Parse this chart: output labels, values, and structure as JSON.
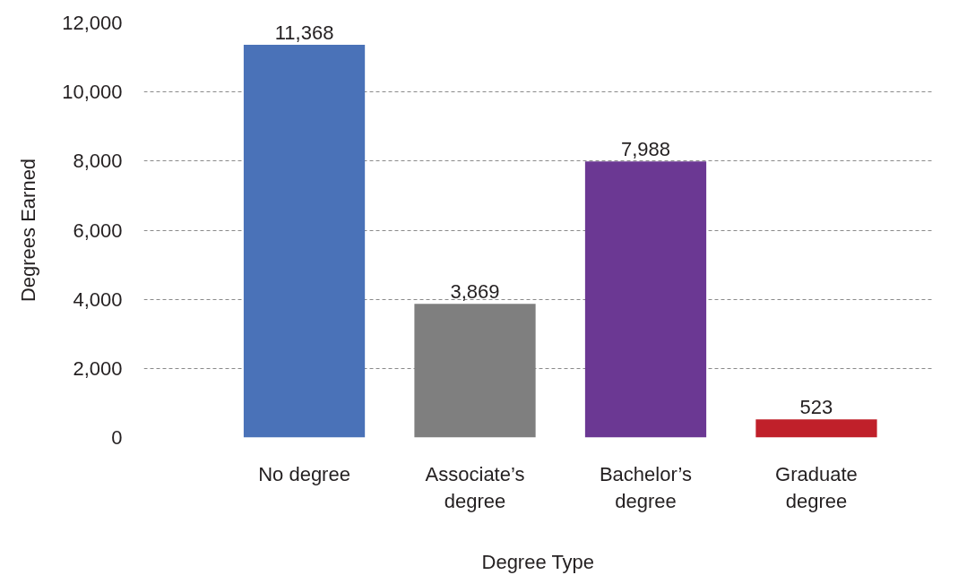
{
  "chart_data": {
    "type": "bar",
    "xlabel": "Degree Type",
    "ylabel": "Degrees Earned",
    "categories": [
      "No degree",
      "Associate’s degree",
      "Bachelor’s degree",
      "Graduate degree"
    ],
    "values": [
      11368,
      3869,
      7988,
      523
    ],
    "colors": [
      "#4a72b8",
      "#7f7f7f",
      "#6b3893",
      "#c0202a"
    ],
    "ylim": [
      0,
      12000
    ],
    "yticks": [
      0,
      {
        "value": 2000,
        "label": "2,000"
      },
      {
        "value": 4000,
        "label": "4,000"
      },
      {
        "value": 6000,
        "label": "6,000"
      },
      {
        "value": 8000,
        "label": "8,000"
      },
      {
        "value": 10000,
        "label": "10,000"
      },
      {
        "value": 12000,
        "label": "12,000"
      }
    ],
    "value_labels": [
      "11,368",
      "3,869",
      "7,988",
      "523"
    ],
    "grid": "y"
  }
}
